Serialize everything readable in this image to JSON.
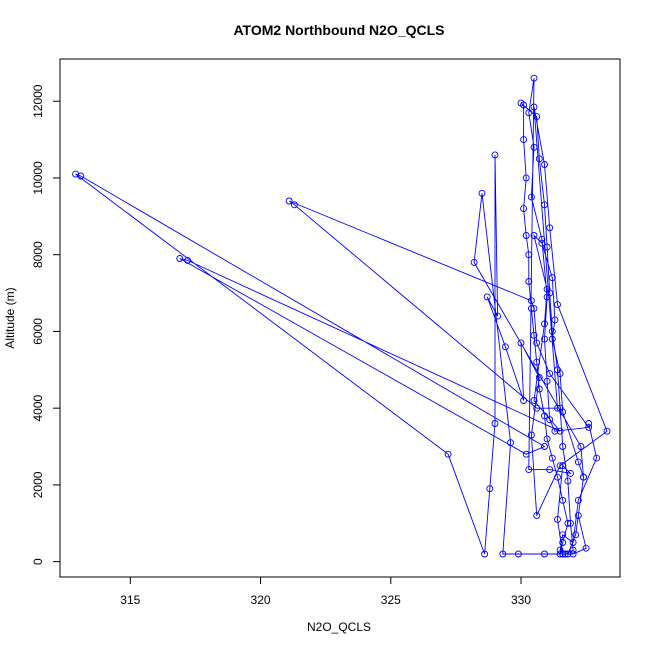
{
  "chart_data": {
    "type": "scatter",
    "title": "ATOM2 Northbound N2O_QCLS",
    "xlabel": "N2O_QCLS",
    "ylabel": "Altitude (m)",
    "xlim": [
      312.3,
      333.8
    ],
    "ylim": [
      -400,
      13100
    ],
    "xticks": [
      315,
      320,
      325,
      330
    ],
    "yticks": [
      0,
      2000,
      4000,
      6000,
      8000,
      10000,
      12000
    ],
    "grid": false,
    "legend": "none",
    "series": [
      {
        "color": "#0000ff",
        "marker": "open-circle",
        "line": true,
        "points": [
          {
            "x": 331.5,
            "y": 200
          },
          {
            "x": 331.6,
            "y": 500
          },
          {
            "x": 331.8,
            "y": 1000
          },
          {
            "x": 331.6,
            "y": 1600
          },
          {
            "x": 331.4,
            "y": 2200
          },
          {
            "x": 331.2,
            "y": 2700
          },
          {
            "x": 331.0,
            "y": 3200
          },
          {
            "x": 330.9,
            "y": 3800
          },
          {
            "x": 330.7,
            "y": 4500
          },
          {
            "x": 330.6,
            "y": 5200
          },
          {
            "x": 330.5,
            "y": 5900
          },
          {
            "x": 330.4,
            "y": 6600
          },
          {
            "x": 330.3,
            "y": 7300
          },
          {
            "x": 330.3,
            "y": 8000
          },
          {
            "x": 330.2,
            "y": 8500
          },
          {
            "x": 330.1,
            "y": 9200
          },
          {
            "x": 330.2,
            "y": 10000
          },
          {
            "x": 330.1,
            "y": 11000
          },
          {
            "x": 330.1,
            "y": 11900
          },
          {
            "x": 330.0,
            "y": 11950
          },
          {
            "x": 330.6,
            "y": 11600
          },
          {
            "x": 330.7,
            "y": 10500
          },
          {
            "x": 330.9,
            "y": 9300
          },
          {
            "x": 331.0,
            "y": 8200
          },
          {
            "x": 331.1,
            "y": 7000
          },
          {
            "x": 331.2,
            "y": 6000
          },
          {
            "x": 331.4,
            "y": 5000
          },
          {
            "x": 331.5,
            "y": 4000
          },
          {
            "x": 331.6,
            "y": 3000
          },
          {
            "x": 331.8,
            "y": 2100
          },
          {
            "x": 331.9,
            "y": 1000
          },
          {
            "x": 332.0,
            "y": 300
          },
          {
            "x": 331.7,
            "y": 200
          },
          {
            "x": 330.9,
            "y": 200
          },
          {
            "x": 329.9,
            "y": 200
          },
          {
            "x": 329.3,
            "y": 200
          },
          {
            "x": 329.6,
            "y": 3100
          },
          {
            "x": 328.5,
            "y": 9600
          },
          {
            "x": 328.2,
            "y": 7800
          },
          {
            "x": 332.3,
            "y": 3000
          },
          {
            "x": 332.4,
            "y": 2200
          },
          {
            "x": 332.2,
            "y": 1200
          },
          {
            "x": 332.5,
            "y": 350
          },
          {
            "x": 332.0,
            "y": 200
          },
          {
            "x": 331.6,
            "y": 200
          },
          {
            "x": 331.4,
            "y": 1100
          },
          {
            "x": 331.6,
            "y": 2500
          },
          {
            "x": 331.9,
            "y": 2300
          },
          {
            "x": 331.1,
            "y": 2400
          },
          {
            "x": 330.3,
            "y": 2400
          },
          {
            "x": 330.5,
            "y": 12600
          },
          {
            "x": 330.3,
            "y": 11700
          },
          {
            "x": 330.5,
            "y": 10800
          },
          {
            "x": 330.4,
            "y": 9500
          },
          {
            "x": 330.8,
            "y": 8400
          },
          {
            "x": 331.0,
            "y": 6900
          },
          {
            "x": 330.9,
            "y": 5800
          },
          {
            "x": 331.0,
            "y": 4700
          },
          {
            "x": 331.1,
            "y": 3700
          },
          {
            "x": 331.3,
            "y": 3400
          },
          {
            "x": 332.6,
            "y": 3500
          },
          {
            "x": 331.1,
            "y": 4900
          },
          {
            "x": 330.6,
            "y": 5700
          },
          {
            "x": 330.5,
            "y": 6600
          },
          {
            "x": 330.4,
            "y": 6800
          },
          {
            "x": 321.1,
            "y": 9400
          },
          {
            "x": 321.3,
            "y": 9300
          },
          {
            "x": 330.6,
            "y": 4000
          },
          {
            "x": 331.4,
            "y": 4000
          },
          {
            "x": 330.5,
            "y": 11850
          },
          {
            "x": 330.9,
            "y": 10350
          },
          {
            "x": 331.1,
            "y": 8700
          },
          {
            "x": 331.4,
            "y": 6700
          },
          {
            "x": 333.3,
            "y": 3400
          },
          {
            "x": 331.5,
            "y": 2500
          },
          {
            "x": 330.6,
            "y": 1200
          },
          {
            "x": 330.4,
            "y": 3300
          },
          {
            "x": 330.7,
            "y": 4800
          },
          {
            "x": 330.0,
            "y": 5700
          },
          {
            "x": 330.1,
            "y": 4200
          },
          {
            "x": 329.4,
            "y": 5600
          },
          {
            "x": 328.7,
            "y": 6900
          },
          {
            "x": 329.1,
            "y": 6400
          },
          {
            "x": 329.0,
            "y": 10600
          },
          {
            "x": 329.0,
            "y": 3600
          },
          {
            "x": 328.8,
            "y": 1900
          },
          {
            "x": 328.6,
            "y": 200
          },
          {
            "x": 327.2,
            "y": 2800
          },
          {
            "x": 312.9,
            "y": 10100
          },
          {
            "x": 313.1,
            "y": 10050
          },
          {
            "x": 330.9,
            "y": 3000
          },
          {
            "x": 330.2,
            "y": 2800
          },
          {
            "x": 316.9,
            "y": 7900
          },
          {
            "x": 317.2,
            "y": 7850
          },
          {
            "x": 331.5,
            "y": 3400
          },
          {
            "x": 330.5,
            "y": 4200
          },
          {
            "x": 330.9,
            "y": 6200
          },
          {
            "x": 331.0,
            "y": 7100
          },
          {
            "x": 330.5,
            "y": 8500
          },
          {
            "x": 330.8,
            "y": 8300
          },
          {
            "x": 331.2,
            "y": 7400
          },
          {
            "x": 331.3,
            "y": 6300
          },
          {
            "x": 331.2,
            "y": 5800
          },
          {
            "x": 331.5,
            "y": 4900
          },
          {
            "x": 331.6,
            "y": 3900
          },
          {
            "x": 332.2,
            "y": 2600
          },
          {
            "x": 332.4,
            "y": 2200
          },
          {
            "x": 332.1,
            "y": 700
          },
          {
            "x": 331.8,
            "y": 200
          },
          {
            "x": 331.5,
            "y": 300
          },
          {
            "x": 331.6,
            "y": 700
          },
          {
            "x": 332.0,
            "y": 500
          },
          {
            "x": 332.2,
            "y": 1600
          },
          {
            "x": 332.9,
            "y": 2700
          },
          {
            "x": 332.6,
            "y": 3600
          }
        ]
      }
    ]
  }
}
